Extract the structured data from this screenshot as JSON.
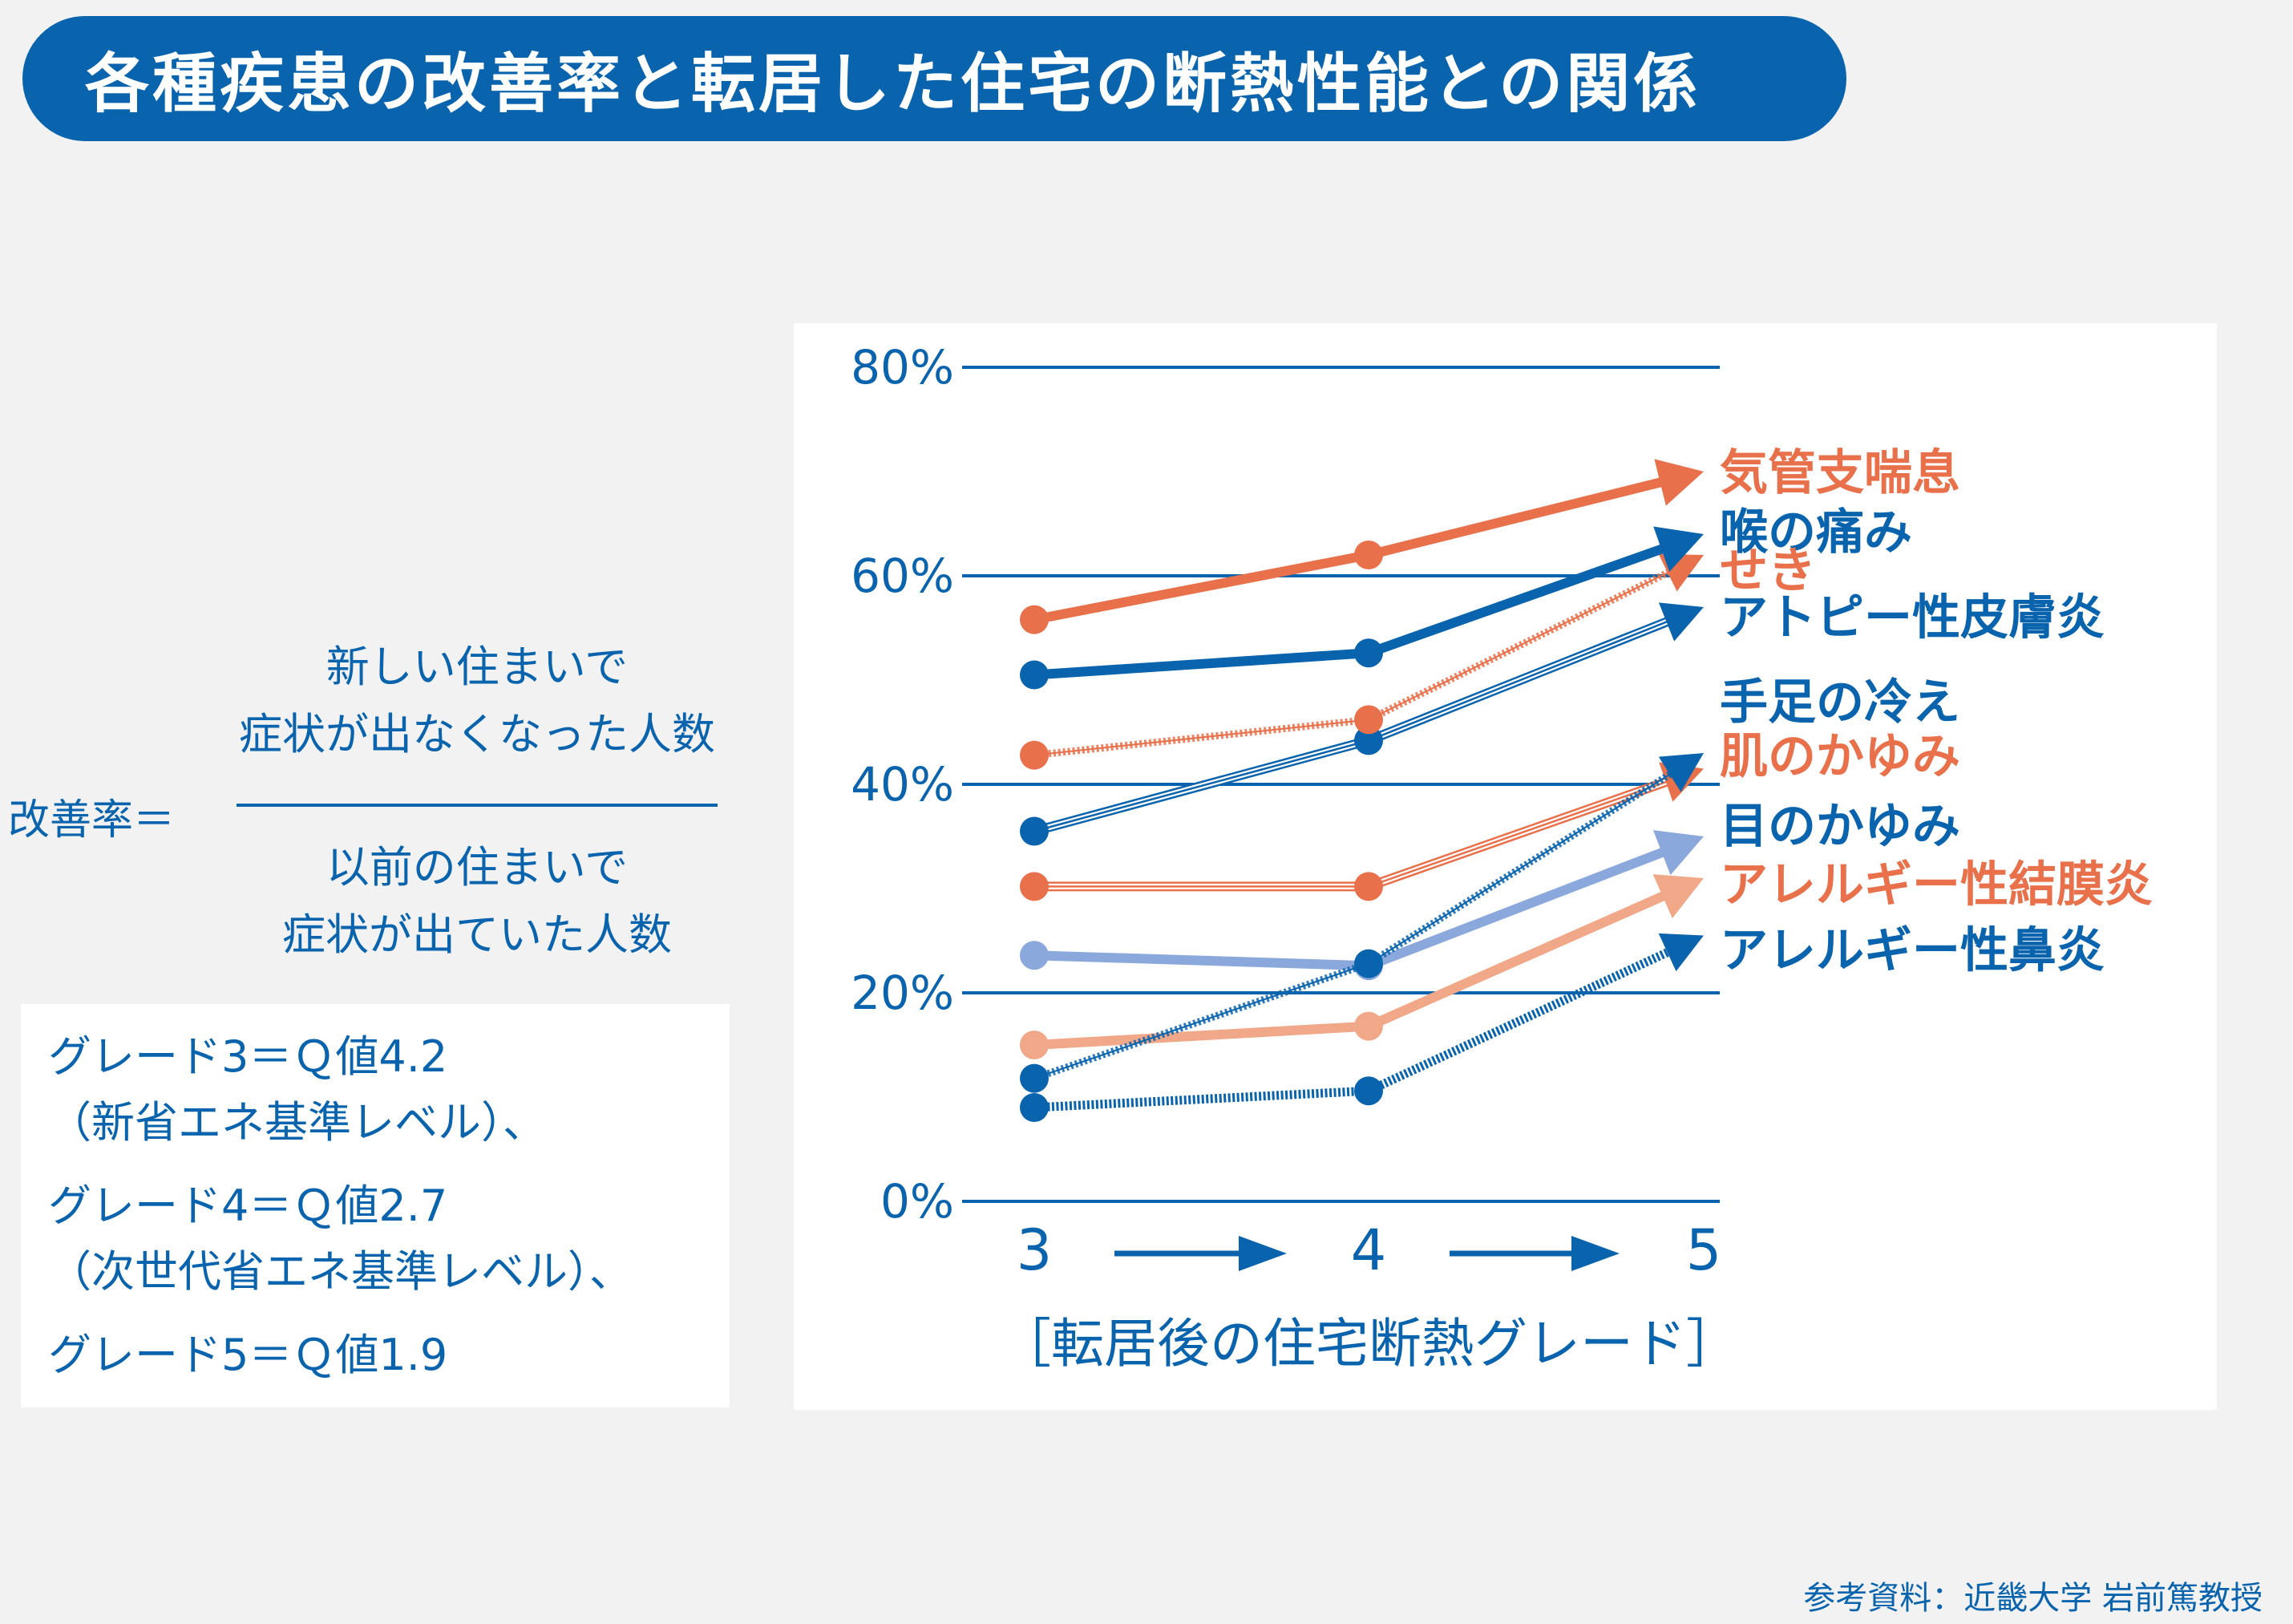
{
  "title": "各種疾患の改善率と転居した住宅の断熱性能との関係",
  "formula": {
    "label": "改善率＝",
    "numerator": [
      "新しい住まいで",
      "症状が出なくなった人数"
    ],
    "denominator": [
      "以前の住まいで",
      "症状が出ていた人数"
    ]
  },
  "grades": [
    "グレード3＝Ｑ値4.2",
    "（新省エネ基準レベル）、",
    "グレード4＝Ｑ値2.7",
    "（次世代省エネ基準レベル）、",
    "グレード5＝Ｑ値1.9"
  ],
  "source": "参考資料：近畿大学 岩前篤教授",
  "colors": {
    "dark_blue": "#0a64ad",
    "orange": "#e8704a",
    "light_blue": "#8aa8dc",
    "light_orange": "#f0a888",
    "banner": "#0a64ad"
  },
  "chart_data": {
    "type": "line",
    "title": "",
    "x": [
      "3",
      "4",
      "5"
    ],
    "xlabel": "［転居後の住宅断熱グレード］",
    "ylabel": "",
    "ylim": [
      0,
      80
    ],
    "y_ticks": [
      "0%",
      "20%",
      "40%",
      "60%",
      "80%"
    ],
    "y_tick_values": [
      0,
      20,
      40,
      60,
      80
    ],
    "grid": true,
    "series": [
      {
        "name": "気管支喘息",
        "values": [
          55.8,
          62.0,
          70.0
        ],
        "color": "#e8704a",
        "style": "thick",
        "label_color": "#e8704a"
      },
      {
        "name": "喉の痛み",
        "values": [
          50.5,
          52.6,
          64.0
        ],
        "color": "#0a64ad",
        "style": "thick",
        "label_color": "#0a64ad"
      },
      {
        "name": "せき",
        "values": [
          42.8,
          46.2,
          62.0
        ],
        "color": "#e8704a",
        "style": "zigzag",
        "label_color": "#e8704a"
      },
      {
        "name": "アトピー性皮膚炎",
        "values": [
          35.5,
          44.2,
          57.0
        ],
        "color": "#0a64ad",
        "style": "triple",
        "label_color": "#0a64ad"
      },
      {
        "name": "手足の冷え",
        "values": [
          11.8,
          22.8,
          43.0
        ],
        "color": "#0a64ad",
        "style": "zigzag",
        "label_color": "#0a64ad"
      },
      {
        "name": "肌のかゆみ",
        "values": [
          30.2,
          30.2,
          41.5
        ],
        "color": "#e8704a",
        "style": "triple",
        "label_color": "#e8704a"
      },
      {
        "name": "目のかゆみ",
        "values": [
          23.6,
          22.6,
          35.0
        ],
        "color": "#8aa8dc",
        "style": "thick",
        "label_color": "#0a64ad"
      },
      {
        "name": "アレルギー性結膜炎",
        "values": [
          15.0,
          16.8,
          31.0
        ],
        "color": "#f0a888",
        "style": "thick",
        "label_color": "#e8704a"
      },
      {
        "name": "アレルギー性鼻炎",
        "values": [
          9.0,
          10.6,
          25.5
        ],
        "color": "#0a64ad",
        "style": "dotted",
        "label_color": "#0a64ad"
      }
    ],
    "labels_y": [
      70.0,
      64.3,
      60.6,
      56.1,
      48.0,
      42.8,
      36.1,
      30.5,
      24.2
    ]
  }
}
